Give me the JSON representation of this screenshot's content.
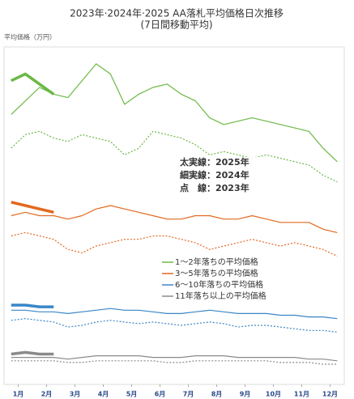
{
  "chart_data": {
    "type": "line",
    "subtitle": "2023年·2024年·2025 AA落札平均価格日次推移",
    "subtitle2": "(7日間移動平均)",
    "ylabel": "平均価格（万円）",
    "annotations": [
      "太実線：2025年",
      "細実線：2024年",
      "点　線：2023年"
    ],
    "xlim": [
      0,
      12
    ],
    "ylim": [
      0,
      100
    ],
    "xticks": [
      {
        "value": 0.5,
        "label": "1月"
      },
      {
        "value": 1.5,
        "label": "2月"
      },
      {
        "value": 2.5,
        "label": "3月"
      },
      {
        "value": 3.5,
        "label": "4月"
      },
      {
        "value": 4.5,
        "label": "5月"
      },
      {
        "value": 5.5,
        "label": "6月"
      },
      {
        "value": 6.5,
        "label": "7月"
      },
      {
        "value": 7.5,
        "label": "8月"
      },
      {
        "value": 8.5,
        "label": "9月"
      },
      {
        "value": 9.5,
        "label": "10月"
      },
      {
        "value": 10.5,
        "label": "11月"
      },
      {
        "value": 11.5,
        "label": "12月"
      }
    ],
    "x": [
      0.25,
      0.75,
      1.25,
      1.75,
      2.25,
      2.75,
      3.25,
      3.75,
      4.25,
      4.75,
      5.25,
      5.75,
      6.25,
      6.75,
      7.25,
      7.75,
      8.25,
      8.75,
      9.25,
      9.75,
      10.25,
      10.75,
      11.25,
      11.75
    ],
    "series": [
      {
        "name": "1～2年落ちの平均価格",
        "color": "#6bb844",
        "values": [
          80,
          84,
          88,
          86,
          85,
          90,
          95,
          92,
          83,
          86,
          88,
          89,
          86,
          84,
          79,
          77,
          78,
          79,
          78,
          77,
          76,
          75,
          70,
          66
        ],
        "values_2023": [
          70,
          74,
          75,
          73,
          72,
          74,
          73,
          72,
          68,
          70,
          75,
          74,
          73,
          71,
          68,
          69,
          68,
          67,
          68,
          67,
          66,
          65,
          62,
          60
        ],
        "values_2025": [
          90,
          92,
          89,
          86,
          null,
          null,
          null,
          null,
          null,
          null,
          null,
          null,
          null,
          null,
          null,
          null,
          null,
          null,
          null,
          null,
          null,
          null,
          null,
          null
        ]
      },
      {
        "name": "3～5年落ちの平均価格",
        "color": "#e2691e",
        "values": [
          50,
          51,
          50,
          50,
          49,
          50,
          52,
          53,
          52,
          51,
          50,
          49,
          49,
          50,
          50,
          49,
          49,
          50,
          49,
          48,
          48,
          48,
          46,
          45
        ],
        "values_2023": [
          44,
          45,
          44,
          43,
          40,
          39,
          41,
          42,
          43,
          43,
          44,
          44,
          43,
          42,
          40,
          41,
          42,
          43,
          42,
          41,
          42,
          41,
          40,
          38
        ],
        "values_2025": [
          54,
          53,
          52,
          51,
          null,
          null,
          null,
          null,
          null,
          null,
          null,
          null,
          null,
          null,
          null,
          null,
          null,
          null,
          null,
          null,
          null,
          null,
          null,
          null
        ]
      },
      {
        "name": "6～10年落ちの平均価格",
        "color": "#3a86c8",
        "values": [
          22,
          22,
          21.5,
          21.5,
          21,
          21.5,
          22,
          22.5,
          22,
          22,
          21.5,
          21,
          21,
          21.5,
          22,
          21.5,
          21,
          21,
          21,
          20.5,
          20.5,
          20,
          20,
          19.5
        ],
        "values_2023": [
          19,
          19.5,
          19,
          18.5,
          17,
          17.5,
          18.5,
          19,
          18.5,
          18,
          18.5,
          18,
          17.5,
          18,
          18.5,
          18,
          17,
          17.5,
          17.5,
          17,
          16.5,
          16,
          16,
          15.5
        ],
        "values_2025": [
          23.5,
          23.5,
          23,
          23,
          null,
          null,
          null,
          null,
          null,
          null,
          null,
          null,
          null,
          null,
          null,
          null,
          null,
          null,
          null,
          null,
          null,
          null,
          null,
          null
        ]
      },
      {
        "name": "11年落ち以上の平均価格",
        "color": "#8a8a8a",
        "values": [
          8,
          8,
          8,
          8,
          7.5,
          8,
          8.5,
          8.5,
          8.5,
          8.5,
          8,
          8,
          8,
          8.5,
          8.5,
          8.5,
          8,
          8,
          8,
          8,
          8,
          7.5,
          7.5,
          7
        ],
        "values_2023": [
          7,
          7,
          7,
          7,
          6.5,
          6.5,
          7,
          7,
          7,
          7,
          7,
          6.5,
          6.5,
          7,
          7,
          7,
          7,
          7,
          7,
          6.5,
          6.5,
          6.5,
          6,
          6
        ],
        "values_2025": [
          9,
          9.5,
          9,
          9,
          null,
          null,
          null,
          null,
          null,
          null,
          null,
          null,
          null,
          null,
          null,
          null,
          null,
          null,
          null,
          null,
          null,
          null,
          null,
          null
        ]
      }
    ]
  }
}
